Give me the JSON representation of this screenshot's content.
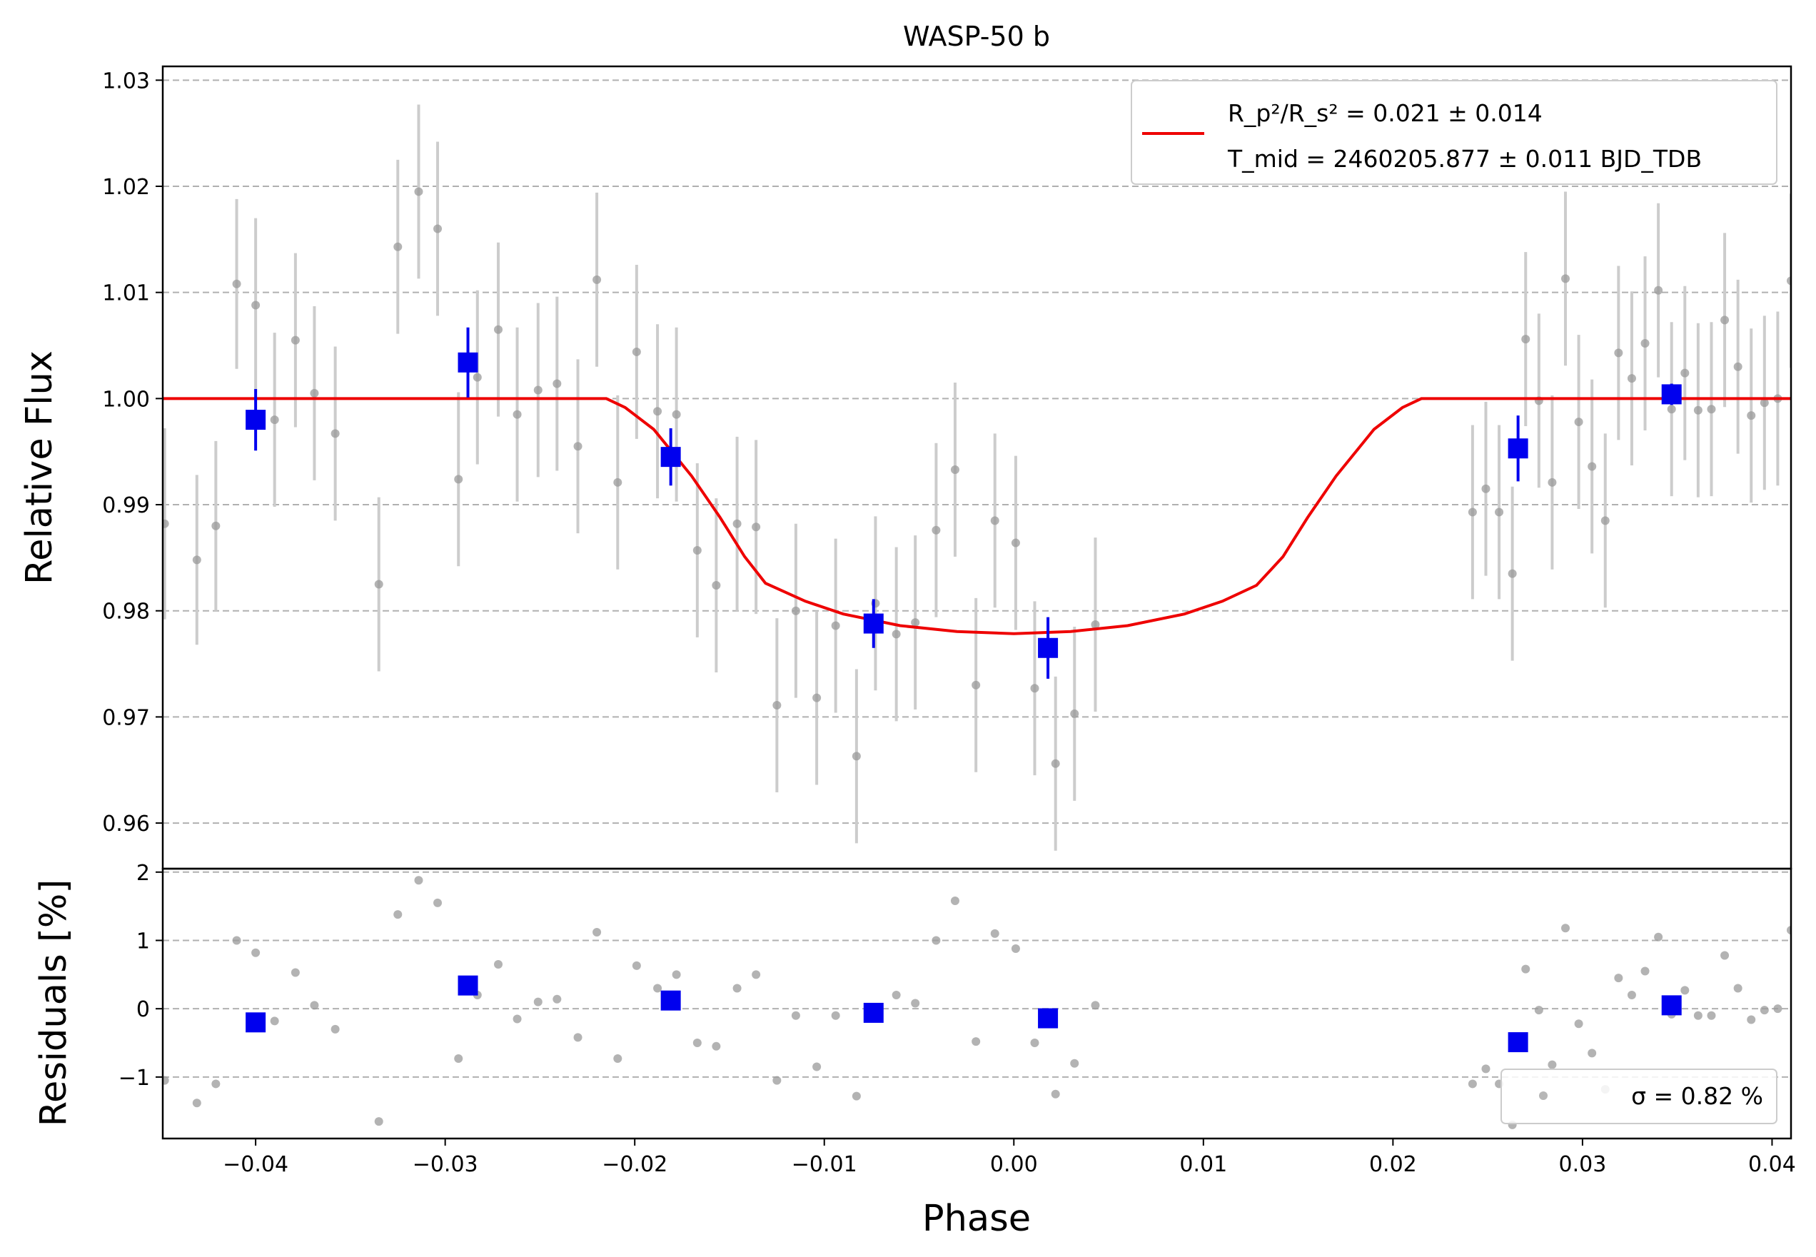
{
  "chart_data": {
    "type": "scatter",
    "title": "WASP-50 b",
    "xlabel": "Phase",
    "x_ticks": [
      "−0.04",
      "−0.03",
      "−0.02",
      "−0.01",
      "0.00",
      "0.01",
      "0.02",
      "0.03",
      "0.04"
    ],
    "x_tick_values": [
      -0.04,
      -0.03,
      -0.02,
      -0.01,
      0.0,
      0.01,
      0.02,
      0.03,
      0.04
    ],
    "xlim": [
      -0.0449,
      0.041
    ],
    "top_panel": {
      "ylabel": "Relative Flux",
      "ylim": [
        0.9557,
        1.0313
      ],
      "y_ticks": [
        "0.96",
        "0.97",
        "0.98",
        "0.99",
        "1.00",
        "1.01",
        "1.02",
        "1.03"
      ],
      "y_tick_values": [
        0.96,
        0.97,
        0.98,
        0.99,
        1.0,
        1.01,
        1.02,
        1.03
      ],
      "grid": "horizontal dashed",
      "legend_position": "top-right",
      "legend_line1": "R_p²/R_s² = 0.021 ± 0.014",
      "legend_line2": "T_mid = 2460205.877 ± 0.011 BJD_TDB",
      "model_color": "#ee0000",
      "model_curve": [
        [
          -0.0449,
          1.0
        ],
        [
          -0.0215,
          1.0
        ],
        [
          -0.0205,
          0.99915
        ],
        [
          -0.019,
          0.9971
        ],
        [
          -0.017,
          0.9927
        ],
        [
          -0.0155,
          0.9888
        ],
        [
          -0.0142,
          0.9851
        ],
        [
          -0.0131,
          0.9826
        ],
        [
          -0.011,
          0.9809
        ],
        [
          -0.009,
          0.9797
        ],
        [
          -0.006,
          0.9786
        ],
        [
          -0.003,
          0.97805
        ],
        [
          0.0,
          0.97785
        ],
        [
          0.003,
          0.97805
        ],
        [
          0.006,
          0.9786
        ],
        [
          0.009,
          0.9797
        ],
        [
          0.011,
          0.9809
        ],
        [
          0.0128,
          0.9824
        ],
        [
          0.0142,
          0.9851
        ],
        [
          0.0155,
          0.9888
        ],
        [
          0.017,
          0.9927
        ],
        [
          0.019,
          0.9971
        ],
        [
          0.0205,
          0.99915
        ],
        [
          0.0215,
          1.0
        ],
        [
          0.041,
          1.0
        ]
      ],
      "raw_color": "#999999",
      "raw": [
        [
          -0.0448,
          0.9882,
          0.009
        ],
        [
          -0.0431,
          0.9848,
          0.008
        ],
        [
          -0.0421,
          0.988,
          0.008
        ],
        [
          -0.041,
          1.0108,
          0.008
        ],
        [
          -0.04,
          1.0088,
          0.0082
        ],
        [
          -0.039,
          0.998,
          0.0082
        ],
        [
          -0.0379,
          1.0055,
          0.0082
        ],
        [
          -0.0369,
          1.0005,
          0.0082
        ],
        [
          -0.0358,
          0.9967,
          0.0082
        ],
        [
          -0.0335,
          0.9825,
          0.0082
        ],
        [
          -0.0325,
          1.0143,
          0.0082
        ],
        [
          -0.0314,
          1.0195,
          0.0082
        ],
        [
          -0.0304,
          1.016,
          0.0082
        ],
        [
          -0.0293,
          0.9924,
          0.0082
        ],
        [
          -0.0283,
          1.002,
          0.0082
        ],
        [
          -0.0272,
          1.0065,
          0.0082
        ],
        [
          -0.0262,
          0.9985,
          0.0082
        ],
        [
          -0.0251,
          1.0008,
          0.0082
        ],
        [
          -0.0241,
          1.0014,
          0.0082
        ],
        [
          -0.023,
          0.9955,
          0.0082
        ],
        [
          -0.022,
          1.0112,
          0.0082
        ],
        [
          -0.0209,
          0.9921,
          0.0082
        ],
        [
          -0.0199,
          1.0044,
          0.0082
        ],
        [
          -0.0188,
          0.9988,
          0.0082
        ],
        [
          -0.0178,
          0.9985,
          0.0082
        ],
        [
          -0.0167,
          0.9857,
          0.0082
        ],
        [
          -0.0157,
          0.9824,
          0.0082
        ],
        [
          -0.0146,
          0.9882,
          0.0082
        ],
        [
          -0.0136,
          0.9879,
          0.0082
        ],
        [
          -0.0125,
          0.9711,
          0.0082
        ],
        [
          -0.0115,
          0.98,
          0.0082
        ],
        [
          -0.0104,
          0.9718,
          0.0082
        ],
        [
          -0.0094,
          0.9786,
          0.0082
        ],
        [
          -0.0083,
          0.9663,
          0.0082
        ],
        [
          -0.0073,
          0.9807,
          0.0082
        ],
        [
          -0.0062,
          0.9778,
          0.0082
        ],
        [
          -0.0052,
          0.9789,
          0.0082
        ],
        [
          -0.0041,
          0.9876,
          0.0082
        ],
        [
          -0.0031,
          0.9933,
          0.0082
        ],
        [
          -0.002,
          0.973,
          0.0082
        ],
        [
          -0.001,
          0.9885,
          0.0082
        ],
        [
          0.0001,
          0.9864,
          0.0082
        ],
        [
          0.0011,
          0.9727,
          0.0082
        ],
        [
          0.0022,
          0.9656,
          0.0082
        ],
        [
          0.0032,
          0.9703,
          0.0082
        ],
        [
          0.0043,
          0.9787,
          0.0082
        ],
        [
          0.0242,
          0.9893,
          0.0082
        ],
        [
          0.0249,
          0.9915,
          0.0082
        ],
        [
          0.0256,
          0.9893,
          0.0082
        ],
        [
          0.0263,
          0.9835,
          0.0082
        ],
        [
          0.027,
          1.0056,
          0.0082
        ],
        [
          0.0277,
          0.9998,
          0.0082
        ],
        [
          0.0284,
          0.9921,
          0.0082
        ],
        [
          0.0291,
          1.0113,
          0.0082
        ],
        [
          0.0298,
          0.9978,
          0.0082
        ],
        [
          0.0305,
          0.9936,
          0.0082
        ],
        [
          0.0312,
          0.9885,
          0.0082
        ],
        [
          0.0319,
          1.0043,
          0.0082
        ],
        [
          0.0326,
          1.0019,
          0.0082
        ],
        [
          0.0333,
          1.0052,
          0.0082
        ],
        [
          0.034,
          1.0102,
          0.0082
        ],
        [
          0.0347,
          0.999,
          0.0082
        ],
        [
          0.0354,
          1.0024,
          0.0082
        ],
        [
          0.0361,
          0.9989,
          0.0082
        ],
        [
          0.0368,
          0.999,
          0.0082
        ],
        [
          0.0375,
          1.0074,
          0.0082
        ],
        [
          0.0382,
          1.003,
          0.0082
        ],
        [
          0.0389,
          0.9984,
          0.0082
        ],
        [
          0.0396,
          0.9996,
          0.0082
        ],
        [
          0.0403,
          1.0,
          0.0082
        ],
        [
          0.041,
          1.0111,
          0.0082
        ]
      ],
      "binned_color": "#0000ee",
      "binned": [
        [
          -0.04,
          0.998,
          0.0029
        ],
        [
          -0.0288,
          1.0034,
          0.0033
        ],
        [
          -0.0181,
          0.9945,
          0.0027
        ],
        [
          -0.0074,
          0.9788,
          0.0023
        ],
        [
          0.0018,
          0.9765,
          0.0029
        ],
        [
          0.0266,
          0.9953,
          0.0031
        ],
        [
          0.0347,
          1.0004,
          0.001
        ]
      ]
    },
    "bottom_panel": {
      "ylabel": "Residuals [%]",
      "ylim": [
        -1.9,
        2.05
      ],
      "y_ticks": [
        "−1",
        "0",
        "1",
        "2"
      ],
      "y_tick_values": [
        -1,
        0,
        1,
        2
      ],
      "legend_position": "bottom-right",
      "legend_label": "σ = 0.82 %",
      "raw": [
        [
          -0.0448,
          -1.05
        ],
        [
          -0.0431,
          -1.38
        ],
        [
          -0.0421,
          -1.1
        ],
        [
          -0.041,
          1.0
        ],
        [
          -0.04,
          0.82
        ],
        [
          -0.039,
          -0.18
        ],
        [
          -0.0379,
          0.53
        ],
        [
          -0.0369,
          0.05
        ],
        [
          -0.0358,
          -0.3
        ],
        [
          -0.0335,
          -1.65
        ],
        [
          -0.0325,
          1.38
        ],
        [
          -0.0314,
          1.88
        ],
        [
          -0.0304,
          1.55
        ],
        [
          -0.0293,
          -0.73
        ],
        [
          -0.0283,
          0.2
        ],
        [
          -0.0272,
          0.65
        ],
        [
          -0.0262,
          -0.15
        ],
        [
          -0.0251,
          0.1
        ],
        [
          -0.0241,
          0.14
        ],
        [
          -0.023,
          -0.42
        ],
        [
          -0.022,
          1.12
        ],
        [
          -0.0209,
          -0.73
        ],
        [
          -0.0199,
          0.63
        ],
        [
          -0.0188,
          0.3
        ],
        [
          -0.0178,
          0.5
        ],
        [
          -0.0167,
          -0.5
        ],
        [
          -0.0157,
          -0.55
        ],
        [
          -0.0146,
          0.3
        ],
        [
          -0.0136,
          0.5
        ],
        [
          -0.0125,
          -1.05
        ],
        [
          -0.0115,
          -0.1
        ],
        [
          -0.0104,
          -0.85
        ],
        [
          -0.0094,
          -0.1
        ],
        [
          -0.0083,
          -1.28
        ],
        [
          -0.0073,
          -0.05
        ],
        [
          -0.0062,
          0.2
        ],
        [
          -0.0052,
          0.08
        ],
        [
          -0.0041,
          1.0
        ],
        [
          -0.0031,
          1.58
        ],
        [
          -0.002,
          -0.48
        ],
        [
          -0.001,
          1.1
        ],
        [
          0.0001,
          0.88
        ],
        [
          0.0011,
          -0.5
        ],
        [
          0.0022,
          -1.25
        ],
        [
          0.0032,
          -0.8
        ],
        [
          0.0043,
          0.05
        ],
        [
          0.0242,
          -1.1
        ],
        [
          0.0249,
          -0.88
        ],
        [
          0.0256,
          -1.1
        ],
        [
          0.0263,
          -1.7
        ],
        [
          0.027,
          0.58
        ],
        [
          0.0277,
          -0.02
        ],
        [
          0.0284,
          -0.82
        ],
        [
          0.0291,
          1.18
        ],
        [
          0.0298,
          -0.22
        ],
        [
          0.0305,
          -0.65
        ],
        [
          0.0312,
          -1.18
        ],
        [
          0.0319,
          0.45
        ],
        [
          0.0326,
          0.2
        ],
        [
          0.0333,
          0.55
        ],
        [
          0.034,
          1.05
        ],
        [
          0.0347,
          -0.08
        ],
        [
          0.0354,
          0.27
        ],
        [
          0.0361,
          -0.1
        ],
        [
          0.0368,
          -0.1
        ],
        [
          0.0375,
          0.78
        ],
        [
          0.0382,
          0.3
        ],
        [
          0.0389,
          -0.16
        ],
        [
          0.0396,
          -0.02
        ],
        [
          0.0403,
          0.0
        ],
        [
          0.041,
          1.15
        ]
      ],
      "binned": [
        [
          -0.04,
          -0.2
        ],
        [
          -0.0288,
          0.34
        ],
        [
          -0.0181,
          0.12
        ],
        [
          -0.0074,
          -0.06
        ],
        [
          0.0018,
          -0.14
        ],
        [
          0.0266,
          -0.49
        ],
        [
          0.0347,
          0.05
        ]
      ]
    }
  }
}
